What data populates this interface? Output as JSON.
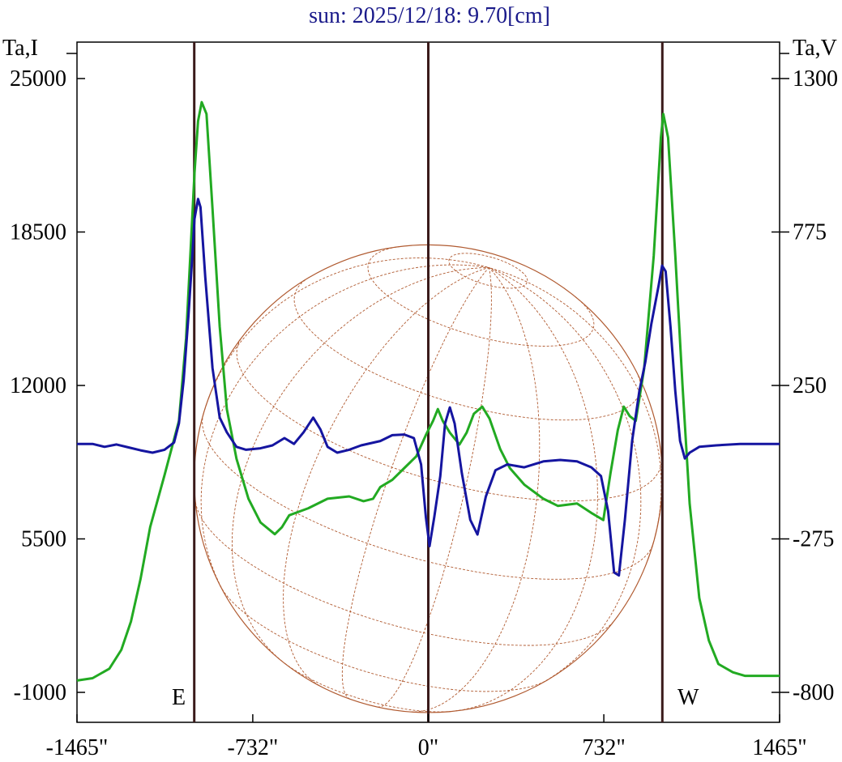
{
  "chart_data": {
    "type": "line",
    "title": "sun: 2025/12/18: 9.70[cm]",
    "y_left_label": "Ta,I",
    "y_right_label": "Ta,V",
    "xlim": [
      -1465,
      1465
    ],
    "ylim_left": [
      -1000,
      25000
    ],
    "ylim_right": [
      -800,
      1300
    ],
    "x_ticks": [
      -1465,
      -732,
      0,
      732,
      1465
    ],
    "x_tick_labels": [
      "-1465\"",
      "-732\"",
      "0\"",
      "732\"",
      "1465\""
    ],
    "y_left_ticks": [
      25000,
      18500,
      12000,
      5500,
      -1000
    ],
    "y_left_tick_labels": [
      "25000",
      "18500",
      "12000",
      "5500",
      "-1000"
    ],
    "y_right_ticks": [
      1300,
      775,
      250,
      -275,
      -800
    ],
    "y_right_tick_labels": [
      "1300",
      "775",
      "250",
      "-275",
      "-800"
    ],
    "vertical_markers": [
      {
        "x": -976,
        "label": "E"
      },
      {
        "x": 0,
        "label": ""
      },
      {
        "x": 976,
        "label": "W"
      }
    ],
    "sun_disk": {
      "center_x": 0,
      "center_y_left": 8050,
      "radius_arcsec": 976
    },
    "colors": {
      "series_I": "#22aa22",
      "series_V": "#1515a0",
      "markers": "#3a1a1a",
      "disk": "#b05a30",
      "axes": "#000000",
      "text": "#000000",
      "title": "#1a1a8a"
    },
    "series": [
      {
        "axis": "left",
        "color": "#22aa22",
        "points": [
          [
            -1465,
            -500
          ],
          [
            -1400,
            -400
          ],
          [
            -1330,
            0
          ],
          [
            -1280,
            800
          ],
          [
            -1240,
            2000
          ],
          [
            -1200,
            3800
          ],
          [
            -1160,
            6000
          ],
          [
            -1100,
            8200
          ],
          [
            -1040,
            10500
          ],
          [
            -1010,
            14000
          ],
          [
            -990,
            18000
          ],
          [
            -975,
            21000
          ],
          [
            -960,
            23200
          ],
          [
            -945,
            24000
          ],
          [
            -925,
            23500
          ],
          [
            -900,
            19500
          ],
          [
            -870,
            14500
          ],
          [
            -840,
            11000
          ],
          [
            -800,
            8900
          ],
          [
            -750,
            7200
          ],
          [
            -700,
            6200
          ],
          [
            -640,
            5700
          ],
          [
            -610,
            6000
          ],
          [
            -580,
            6500
          ],
          [
            -500,
            6800
          ],
          [
            -420,
            7200
          ],
          [
            -330,
            7300
          ],
          [
            -270,
            7100
          ],
          [
            -230,
            7200
          ],
          [
            -200,
            7700
          ],
          [
            -150,
            8000
          ],
          [
            -100,
            8500
          ],
          [
            -50,
            9000
          ],
          [
            -10,
            9900
          ],
          [
            20,
            10500
          ],
          [
            40,
            11000
          ],
          [
            60,
            10500
          ],
          [
            90,
            10000
          ],
          [
            130,
            9500
          ],
          [
            160,
            10000
          ],
          [
            190,
            10800
          ],
          [
            225,
            11100
          ],
          [
            255,
            10600
          ],
          [
            300,
            9300
          ],
          [
            340,
            8500
          ],
          [
            400,
            7800
          ],
          [
            480,
            7200
          ],
          [
            540,
            6900
          ],
          [
            620,
            7000
          ],
          [
            680,
            6600
          ],
          [
            730,
            6300
          ],
          [
            760,
            8300
          ],
          [
            790,
            10100
          ],
          [
            815,
            11100
          ],
          [
            840,
            10700
          ],
          [
            865,
            10500
          ],
          [
            900,
            12700
          ],
          [
            940,
            17500
          ],
          [
            970,
            22500
          ],
          [
            980,
            23500
          ],
          [
            1000,
            22500
          ],
          [
            1030,
            17500
          ],
          [
            1060,
            12000
          ],
          [
            1090,
            7000
          ],
          [
            1130,
            3000
          ],
          [
            1170,
            1200
          ],
          [
            1210,
            200
          ],
          [
            1270,
            -150
          ],
          [
            1320,
            -300
          ],
          [
            1400,
            -300
          ],
          [
            1465,
            -300
          ]
        ]
      },
      {
        "axis": "right",
        "color": "#1515a0",
        "points": [
          [
            -1465,
            50
          ],
          [
            -1400,
            50
          ],
          [
            -1350,
            40
          ],
          [
            -1300,
            48
          ],
          [
            -1250,
            38
          ],
          [
            -1200,
            28
          ],
          [
            -1150,
            20
          ],
          [
            -1100,
            30
          ],
          [
            -1060,
            55
          ],
          [
            -1040,
            120
          ],
          [
            -1020,
            270
          ],
          [
            -1000,
            490
          ],
          [
            -985,
            680
          ],
          [
            -975,
            820
          ],
          [
            -960,
            888
          ],
          [
            -950,
            860
          ],
          [
            -930,
            620
          ],
          [
            -900,
            310
          ],
          [
            -870,
            140
          ],
          [
            -840,
            90
          ],
          [
            -800,
            40
          ],
          [
            -760,
            30
          ],
          [
            -700,
            35
          ],
          [
            -650,
            45
          ],
          [
            -600,
            70
          ],
          [
            -560,
            50
          ],
          [
            -520,
            90
          ],
          [
            -480,
            140
          ],
          [
            -450,
            100
          ],
          [
            -420,
            40
          ],
          [
            -380,
            20
          ],
          [
            -330,
            30
          ],
          [
            -280,
            45
          ],
          [
            -200,
            60
          ],
          [
            -150,
            80
          ],
          [
            -100,
            82
          ],
          [
            -60,
            70
          ],
          [
            -30,
            -20
          ],
          [
            -10,
            -200
          ],
          [
            5,
            -300
          ],
          [
            25,
            -200
          ],
          [
            50,
            -60
          ],
          [
            70,
            120
          ],
          [
            90,
            175
          ],
          [
            110,
            120
          ],
          [
            140,
            -50
          ],
          [
            175,
            -210
          ],
          [
            205,
            -260
          ],
          [
            240,
            -130
          ],
          [
            280,
            -40
          ],
          [
            330,
            -20
          ],
          [
            400,
            -30
          ],
          [
            480,
            -10
          ],
          [
            550,
            -5
          ],
          [
            620,
            -10
          ],
          [
            680,
            -30
          ],
          [
            720,
            -60
          ],
          [
            750,
            -180
          ],
          [
            775,
            -390
          ],
          [
            795,
            -400
          ],
          [
            820,
            -210
          ],
          [
            850,
            60
          ],
          [
            880,
            230
          ],
          [
            905,
            330
          ],
          [
            930,
            460
          ],
          [
            960,
            590
          ],
          [
            975,
            660
          ],
          [
            990,
            640
          ],
          [
            1010,
            450
          ],
          [
            1030,
            230
          ],
          [
            1050,
            60
          ],
          [
            1070,
            0
          ],
          [
            1090,
            20
          ],
          [
            1130,
            40
          ],
          [
            1200,
            45
          ],
          [
            1300,
            50
          ],
          [
            1400,
            50
          ],
          [
            1465,
            50
          ]
        ]
      }
    ]
  }
}
